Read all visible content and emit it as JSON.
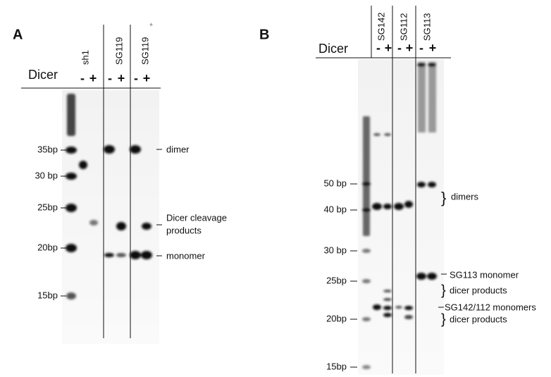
{
  "panels": [
    {
      "label": "A",
      "dicer_label": "Dicer",
      "samples": [
        "sh1",
        "SG119",
        "SG119"
      ],
      "sample_mark": "*",
      "lane_signs": [
        "-",
        "+",
        "-",
        "+",
        "-",
        "+"
      ],
      "markers": [
        "35bp",
        "30 bp",
        "25bp",
        "20bp",
        "15bp"
      ],
      "annotations": {
        "dimer": "dimer",
        "cleavage_line1": "Dicer cleavage",
        "cleavage_line2": "products",
        "monomer": "monomer"
      }
    },
    {
      "label": "B",
      "dicer_label": "Dicer",
      "samples": [
        "SG142",
        "SG112",
        "SG113"
      ],
      "lane_signs": [
        "-",
        "+",
        "-",
        "+",
        "-",
        "+"
      ],
      "markers": [
        "50 bp",
        "40 bp",
        "30 bp",
        "25bp",
        "20bp",
        "15bp"
      ],
      "annotations": {
        "dimers": "dimers",
        "sg113_monomer": "SG113 monomer",
        "dicer_products_1": "dicer products",
        "monomers": "SG142/112 monomers",
        "dicer_products_2": "dicer products"
      }
    }
  ]
}
